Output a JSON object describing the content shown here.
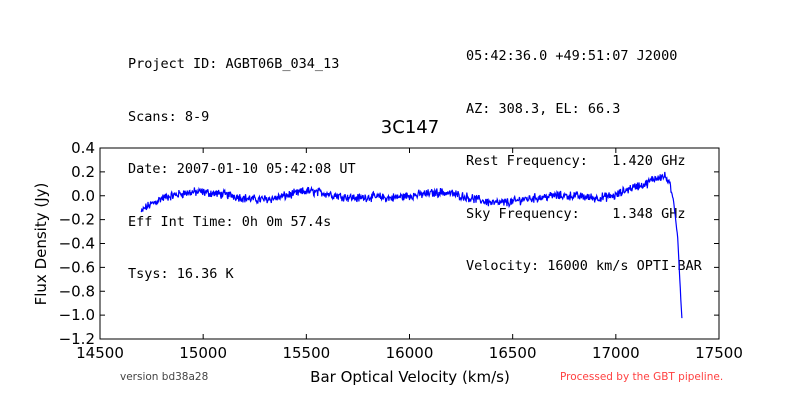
{
  "header": {
    "left": [
      "Project ID: AGBT06B_034_13",
      "Scans: 8-9",
      "Date: 2007-01-10 05:42:08 UT",
      "Eff Int Time: 0h 0m 57.4s",
      "Tsys: 16.36 K"
    ],
    "right": [
      "05:42:36.0 +49:51:07 J2000",
      "AZ: 308.3, EL: 66.3",
      "Rest Frequency:   1.420 GHz",
      "Sky Frequency:    1.348 GHz",
      "Velocity: 16000 km/s OPTI-BAR"
    ]
  },
  "footer": {
    "version": "version bd38a28",
    "processed": "Processed by the GBT pipeline."
  },
  "colors": {
    "line": "#0000ff",
    "processed_text": "#ff4040",
    "version_text": "#444444"
  },
  "chart_data": {
    "type": "line",
    "title": "3C147",
    "xlabel": "Bar Optical Velocity (km/s)",
    "ylabel": "Flux Density (Jy)",
    "xlim": [
      14500,
      17500
    ],
    "ylim": [
      -1.2,
      0.4
    ],
    "xticks": [
      "14500",
      "15000",
      "15500",
      "16000",
      "16500",
      "17000",
      "17500"
    ],
    "yticks": [
      "−1.2",
      "−1.0",
      "−0.8",
      "−0.6",
      "−0.4",
      "−0.2",
      "0.0",
      "0.2",
      "0.4"
    ],
    "grid": false,
    "series": [
      {
        "x": [
          14700,
          14720,
          14760,
          14800,
          14850,
          14900,
          14950,
          15000,
          15050,
          15100,
          15150,
          15200,
          15250,
          15300,
          15350,
          15400,
          15450,
          15500,
          15550,
          15600,
          15650,
          15700,
          15750,
          15800,
          15850,
          15900,
          15950,
          16000,
          16050,
          16100,
          16150,
          16200,
          16250,
          16300,
          16350,
          16400,
          16450,
          16500,
          16550,
          16600,
          16650,
          16700,
          16750,
          16800,
          16850,
          16900,
          16950,
          17000,
          17050,
          17100,
          17150,
          17180,
          17210,
          17240,
          17260,
          17280,
          17300,
          17310,
          17320
        ],
        "y": [
          -0.14,
          -0.1,
          -0.06,
          -0.02,
          0.0,
          0.02,
          0.03,
          0.03,
          0.02,
          0.01,
          0.0,
          -0.02,
          -0.03,
          -0.03,
          -0.02,
          0.0,
          0.02,
          0.04,
          0.03,
          0.02,
          0.0,
          -0.01,
          -0.02,
          -0.01,
          -0.01,
          -0.02,
          -0.01,
          0.0,
          0.01,
          0.02,
          0.03,
          0.02,
          0.0,
          -0.02,
          -0.04,
          -0.06,
          -0.06,
          -0.05,
          -0.03,
          -0.02,
          -0.01,
          0.0,
          0.0,
          0.0,
          -0.01,
          -0.02,
          -0.01,
          0.0,
          0.05,
          0.08,
          0.1,
          0.14,
          0.16,
          0.16,
          0.1,
          -0.05,
          -0.35,
          -0.7,
          -1.02
        ]
      }
    ]
  }
}
